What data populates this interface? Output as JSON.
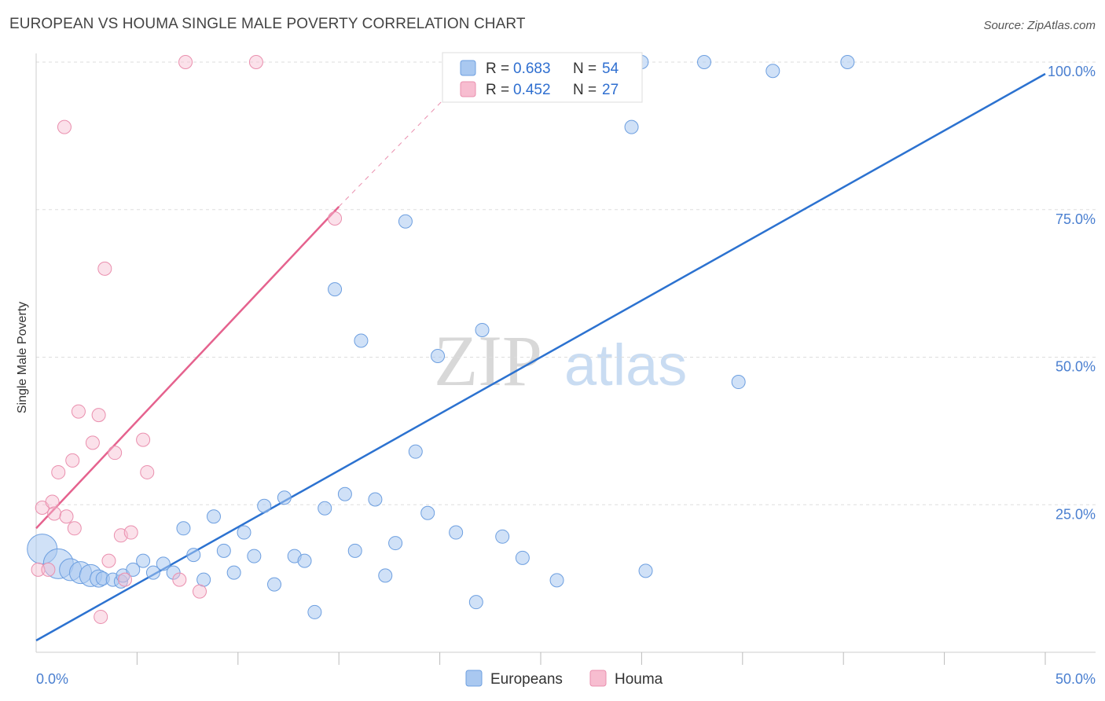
{
  "header": {
    "title": "EUROPEAN VS HOUMA SINGLE MALE POVERTY CORRELATION CHART",
    "source": "Source: ZipAtlas.com"
  },
  "watermark": {
    "zip": "ZIP",
    "atlas": "atlas"
  },
  "colors": {
    "europeans_fill": "#a9c8f0",
    "europeans_stroke": "#6d9fe0",
    "europeans_line": "#2c72d0",
    "houma_fill": "#f7bdd0",
    "houma_stroke": "#ea8fae",
    "houma_line": "#e5628e",
    "tick": "#4a7fd0",
    "grid": "#dddddd"
  },
  "legend": {
    "europeans": {
      "r_label": "R =",
      "r_value": "0.683",
      "n_label": "N =",
      "n_value": "54"
    },
    "houma": {
      "r_label": "R =",
      "r_value": "0.452",
      "n_label": "N =",
      "n_value": "27"
    }
  },
  "chart_data": {
    "type": "scatter",
    "title": "EUROPEAN VS HOUMA SINGLE MALE POVERTY CORRELATION CHART",
    "xlabel": "",
    "ylabel": "Single Male Poverty",
    "xlim": [
      0,
      50
    ],
    "ylim": [
      0,
      100
    ],
    "x_tick_labels": [
      "0.0%",
      "50.0%"
    ],
    "y_tick_labels": [
      "25.0%",
      "50.0%",
      "75.0%",
      "100.0%"
    ],
    "y_tick_values": [
      25,
      50,
      75,
      100
    ],
    "legend_position": "top-center",
    "series": [
      {
        "name": "Europeans",
        "trend": {
          "x": [
            0,
            50
          ],
          "y": [
            2,
            98
          ]
        },
        "points": [
          {
            "x": 0.3,
            "y": 17.5,
            "s": 3
          },
          {
            "x": 1.1,
            "y": 15,
            "s": 3
          },
          {
            "x": 1.7,
            "y": 14,
            "s": 2
          },
          {
            "x": 2.2,
            "y": 13.5,
            "s": 2
          },
          {
            "x": 2.7,
            "y": 13,
            "s": 2
          },
          {
            "x": 3.1,
            "y": 12.5,
            "s": 1.5
          },
          {
            "x": 3.3,
            "y": 12.5,
            "s": 1
          },
          {
            "x": 3.8,
            "y": 12.3,
            "s": 1
          },
          {
            "x": 4.2,
            "y": 12,
            "s": 1
          },
          {
            "x": 4.3,
            "y": 13,
            "s": 1
          },
          {
            "x": 4.8,
            "y": 14,
            "s": 1
          },
          {
            "x": 5.3,
            "y": 15.5,
            "s": 1
          },
          {
            "x": 5.8,
            "y": 13.5,
            "s": 1
          },
          {
            "x": 6.3,
            "y": 15,
            "s": 1
          },
          {
            "x": 6.8,
            "y": 13.5,
            "s": 1
          },
          {
            "x": 7.3,
            "y": 21,
            "s": 1
          },
          {
            "x": 7.8,
            "y": 16.5,
            "s": 1
          },
          {
            "x": 8.3,
            "y": 12.3,
            "s": 1
          },
          {
            "x": 8.8,
            "y": 23,
            "s": 1
          },
          {
            "x": 9.3,
            "y": 17.2,
            "s": 1
          },
          {
            "x": 9.8,
            "y": 13.5,
            "s": 1
          },
          {
            "x": 10.3,
            "y": 20.3,
            "s": 1
          },
          {
            "x": 10.8,
            "y": 16.3,
            "s": 1
          },
          {
            "x": 11.3,
            "y": 24.8,
            "s": 1
          },
          {
            "x": 11.8,
            "y": 11.5,
            "s": 1
          },
          {
            "x": 12.3,
            "y": 26.2,
            "s": 1
          },
          {
            "x": 12.8,
            "y": 16.3,
            "s": 1
          },
          {
            "x": 13.3,
            "y": 15.5,
            "s": 1
          },
          {
            "x": 13.8,
            "y": 6.8,
            "s": 1
          },
          {
            "x": 14.3,
            "y": 24.4,
            "s": 1
          },
          {
            "x": 14.8,
            "y": 61.5,
            "s": 1
          },
          {
            "x": 15.3,
            "y": 26.8,
            "s": 1
          },
          {
            "x": 15.8,
            "y": 17.2,
            "s": 1
          },
          {
            "x": 16.1,
            "y": 52.8,
            "s": 1
          },
          {
            "x": 16.8,
            "y": 25.9,
            "s": 1
          },
          {
            "x": 17.3,
            "y": 13,
            "s": 1
          },
          {
            "x": 17.8,
            "y": 18.5,
            "s": 1
          },
          {
            "x": 18.3,
            "y": 73,
            "s": 1
          },
          {
            "x": 18.8,
            "y": 34,
            "s": 1
          },
          {
            "x": 19.4,
            "y": 23.6,
            "s": 1
          },
          {
            "x": 19.9,
            "y": 50.2,
            "s": 1
          },
          {
            "x": 20.8,
            "y": 20.3,
            "s": 1
          },
          {
            "x": 21.8,
            "y": 8.5,
            "s": 1
          },
          {
            "x": 22.1,
            "y": 54.6,
            "s": 1
          },
          {
            "x": 23.1,
            "y": 19.6,
            "s": 1
          },
          {
            "x": 24.1,
            "y": 16,
            "s": 1
          },
          {
            "x": 25.8,
            "y": 12.2,
            "s": 1
          },
          {
            "x": 29.5,
            "y": 89,
            "s": 1
          },
          {
            "x": 30.0,
            "y": 100,
            "s": 1
          },
          {
            "x": 30.2,
            "y": 13.8,
            "s": 1
          },
          {
            "x": 33.1,
            "y": 100,
            "s": 1
          },
          {
            "x": 34.8,
            "y": 45.8,
            "s": 1
          },
          {
            "x": 36.5,
            "y": 98.5,
            "s": 1
          },
          {
            "x": 40.2,
            "y": 100,
            "s": 1
          }
        ]
      },
      {
        "name": "Houma",
        "trend": {
          "x": [
            0,
            15
          ],
          "y": [
            21,
            75.5
          ]
        },
        "trend_extension": {
          "x": [
            15,
            22
          ],
          "y": [
            75.5,
            100
          ]
        },
        "points": [
          {
            "x": 0.1,
            "y": 14,
            "s": 1
          },
          {
            "x": 0.3,
            "y": 24.5,
            "s": 1
          },
          {
            "x": 0.6,
            "y": 14,
            "s": 1
          },
          {
            "x": 0.8,
            "y": 25.5,
            "s": 1
          },
          {
            "x": 0.9,
            "y": 23.5,
            "s": 1
          },
          {
            "x": 1.1,
            "y": 30.5,
            "s": 1
          },
          {
            "x": 1.4,
            "y": 89,
            "s": 1
          },
          {
            "x": 1.5,
            "y": 23,
            "s": 1
          },
          {
            "x": 1.8,
            "y": 32.5,
            "s": 1
          },
          {
            "x": 1.9,
            "y": 21,
            "s": 1
          },
          {
            "x": 2.1,
            "y": 40.8,
            "s": 1
          },
          {
            "x": 2.8,
            "y": 35.5,
            "s": 1
          },
          {
            "x": 3.1,
            "y": 40.2,
            "s": 1
          },
          {
            "x": 3.2,
            "y": 6,
            "s": 1
          },
          {
            "x": 3.4,
            "y": 65,
            "s": 1
          },
          {
            "x": 3.6,
            "y": 15.5,
            "s": 1
          },
          {
            "x": 3.9,
            "y": 33.8,
            "s": 1
          },
          {
            "x": 4.2,
            "y": 19.8,
            "s": 1
          },
          {
            "x": 4.4,
            "y": 12.3,
            "s": 1
          },
          {
            "x": 4.7,
            "y": 20.3,
            "s": 1
          },
          {
            "x": 5.3,
            "y": 36,
            "s": 1
          },
          {
            "x": 5.5,
            "y": 30.5,
            "s": 1
          },
          {
            "x": 7.1,
            "y": 12.3,
            "s": 1
          },
          {
            "x": 7.4,
            "y": 100,
            "s": 1
          },
          {
            "x": 8.1,
            "y": 10.3,
            "s": 1
          },
          {
            "x": 10.9,
            "y": 100,
            "s": 1
          },
          {
            "x": 14.8,
            "y": 73.5,
            "s": 1
          }
        ]
      }
    ]
  },
  "bottom_legend": {
    "europeans": "Europeans",
    "houma": "Houma"
  }
}
